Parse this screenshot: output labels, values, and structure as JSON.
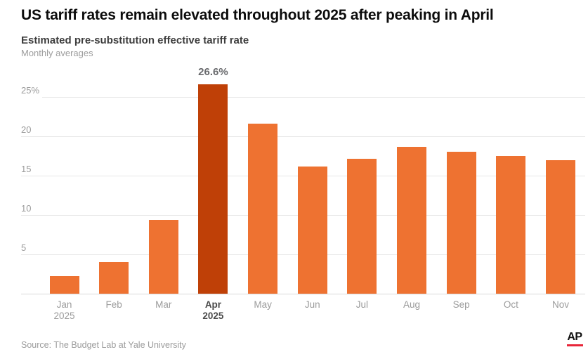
{
  "header": {
    "title": "US tariff rates remain elevated throughout 2025 after peaking in April",
    "subtitle": "Estimated pre-substitution effective tariff rate",
    "note": "Monthly averages"
  },
  "chart_data": {
    "type": "bar",
    "title": "Estimated pre-substitution effective tariff rate",
    "subtitle": "Monthly averages",
    "categories": [
      {
        "label": "Jan",
        "sublabel": "2025",
        "bold": false
      },
      {
        "label": "Feb",
        "sublabel": "",
        "bold": false
      },
      {
        "label": "Mar",
        "sublabel": "",
        "bold": false
      },
      {
        "label": "Apr",
        "sublabel": "2025",
        "bold": true
      },
      {
        "label": "May",
        "sublabel": "",
        "bold": false
      },
      {
        "label": "Jun",
        "sublabel": "",
        "bold": false
      },
      {
        "label": "Jul",
        "sublabel": "",
        "bold": false
      },
      {
        "label": "Aug",
        "sublabel": "",
        "bold": false
      },
      {
        "label": "Sep",
        "sublabel": "",
        "bold": false
      },
      {
        "label": "Oct",
        "sublabel": "",
        "bold": false
      },
      {
        "label": "Nov",
        "sublabel": "",
        "bold": false
      }
    ],
    "values": [
      2.2,
      4.0,
      9.4,
      26.6,
      21.6,
      16.2,
      17.1,
      18.7,
      18.0,
      17.5,
      17.0
    ],
    "highlight_index": 3,
    "highlight_label": "26.6%",
    "y_ticks": [
      5,
      10,
      15,
      20,
      25
    ],
    "y_tick_labels": [
      "5",
      "10",
      "15",
      "20",
      "25%"
    ],
    "ylim": [
      0,
      27.5
    ],
    "grid": true,
    "legend": "none",
    "xlabel": "",
    "ylabel": "",
    "colors": {
      "bar": "#ee7231",
      "highlight": "#bf4007",
      "gridline": "#e7e7e7",
      "axis_text": "#9b9b9b",
      "value_label": "#696a6d"
    }
  },
  "footer": {
    "source": "Source: The Budget Lab at Yale University",
    "logo_text": "AP",
    "logo_red": "#e8263a"
  }
}
